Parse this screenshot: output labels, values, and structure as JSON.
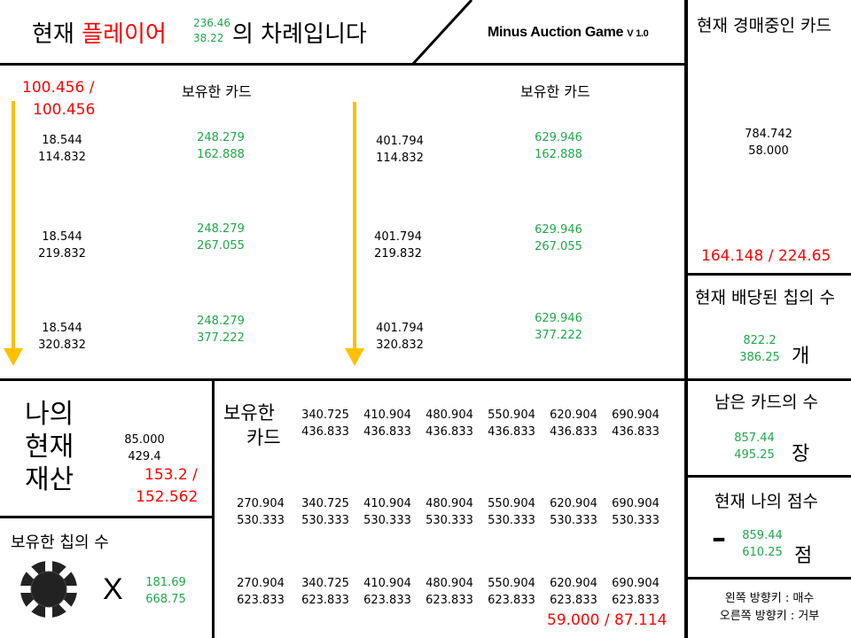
{
  "header": {
    "turn_prefix": "현재 ",
    "player_word": "플레이어",
    "player_x": "236.46",
    "player_y": "38.22",
    "turn_suffix": "의 차례입니다",
    "game_title": "Minus Auction Game",
    "version": "V 1.0"
  },
  "current_card_panel": {
    "title": "현재 경매중인 카드",
    "value_line1": "784.742",
    "value_line2": "58.000",
    "ratio": "164.148 / 224.65"
  },
  "chips_assigned_panel": {
    "title": "현재 배당된 칩의 수",
    "value_line1": "822.2",
    "value_line2": "386.25",
    "unit": "개"
  },
  "cards_left_panel": {
    "title": "남은 카드의 수",
    "value_line1": "857.44",
    "value_line2": "495.25",
    "unit": "장"
  },
  "my_score_panel": {
    "title": "현재 나의 점수",
    "sign": "–",
    "value_line1": "859.44",
    "value_line2": "610.25",
    "unit": "점"
  },
  "controls": {
    "line1": "왼쪽 방향키 : 매수",
    "line2": "오른쪽 방향키 : 거부"
  },
  "opponent_left": {
    "ratio_line1": "100.456 /",
    "ratio_line2": "100.456",
    "held_label": "보유한 카드",
    "rows": [
      {
        "a1": "18.544",
        "a2": "114.832",
        "b1": "248.279",
        "b2": "162.888"
      },
      {
        "a1": "18.544",
        "a2": "219.832",
        "b1": "248.279",
        "b2": "267.055"
      },
      {
        "a1": "18.544",
        "a2": "320.832",
        "b1": "248.279",
        "b2": "377.222"
      }
    ]
  },
  "opponent_right": {
    "held_label": "보유한 카드",
    "rows": [
      {
        "a1": "401.794",
        "a2": "114.832",
        "b1": "629.946",
        "b2": "162.888"
      },
      {
        "a1": "401.794",
        "a2": "219.832",
        "b1": "629.946",
        "b2": "267.055"
      },
      {
        "a1": "401.794",
        "a2": "320.832",
        "b1": "629.946",
        "b2": "377.222"
      }
    ]
  },
  "my_assets": {
    "title_line1": "나의",
    "title_line2": "현재",
    "title_line3": "재산",
    "value_line1": "85.000",
    "value_line2": "429.4",
    "ratio_line1": "153.2 /",
    "ratio_line2": "152.562"
  },
  "my_chips": {
    "title": "보유한 칩의 수",
    "times": "X",
    "value_line1": "181.69",
    "value_line2": "668.75"
  },
  "my_cards": {
    "title_line1": "보유한",
    "title_line2": "카드",
    "row1": [
      [
        "340.725",
        "436.833"
      ],
      [
        "410.904",
        "436.833"
      ],
      [
        "480.904",
        "436.833"
      ],
      [
        "550.904",
        "436.833"
      ],
      [
        "620.904",
        "436.833"
      ],
      [
        "690.904",
        "436.833"
      ]
    ],
    "row2": [
      [
        "270.904",
        "530.333"
      ],
      [
        "340.725",
        "530.333"
      ],
      [
        "410.904",
        "530.333"
      ],
      [
        "480.904",
        "530.333"
      ],
      [
        "550.904",
        "530.333"
      ],
      [
        "620.904",
        "530.333"
      ],
      [
        "690.904",
        "530.333"
      ]
    ],
    "row3": [
      [
        "270.904",
        "623.833"
      ],
      [
        "340.725",
        "623.833"
      ],
      [
        "410.904",
        "623.833"
      ],
      [
        "480.904",
        "623.833"
      ],
      [
        "550.904",
        "623.833"
      ],
      [
        "620.904",
        "623.833"
      ],
      [
        "690.904",
        "623.833"
      ]
    ],
    "ratio": "59.000 / 87.114"
  }
}
